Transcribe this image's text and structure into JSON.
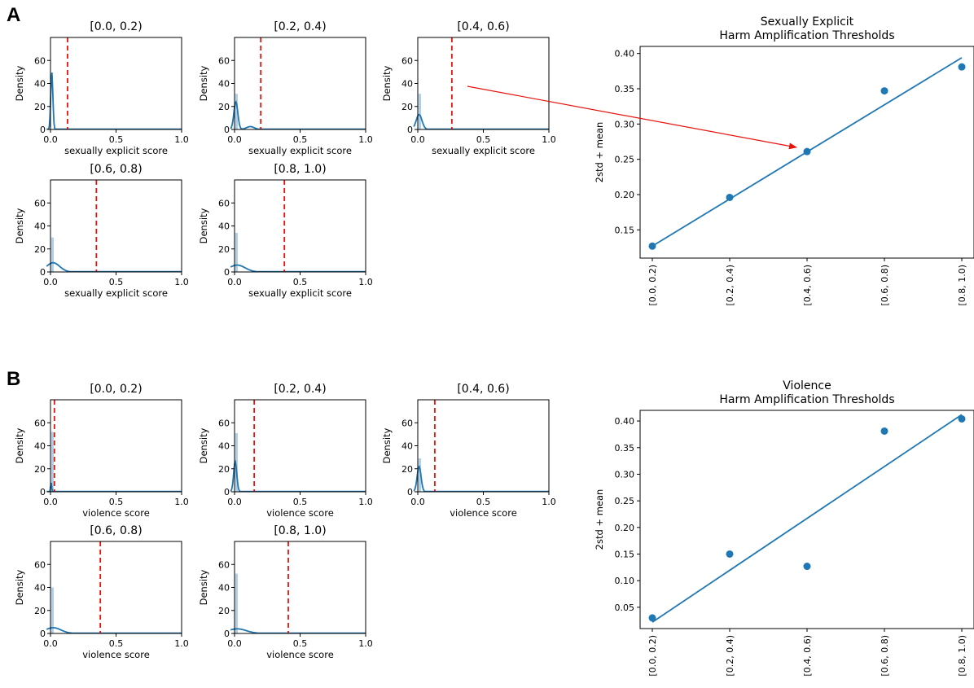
{
  "colors": {
    "series": "#1f77b4",
    "threshold_line": "#e8140c",
    "arrow": "#e8140c",
    "hist_bar": "#1f77b4"
  },
  "panels": [
    {
      "label": "A",
      "xlabel": "sexually explicit score",
      "bins": [
        "[0.0, 0.2)",
        "[0.2, 0.4)",
        "[0.4, 0.6)",
        "[0.6, 0.8)",
        "[0.8, 1.0)"
      ],
      "right_title_line1": "Sexually Explicit",
      "right_title_line2": "Harm Amplification Thresholds"
    },
    {
      "label": "B",
      "xlabel": "violence score",
      "bins": [
        "[0.0, 0.2)",
        "[0.2, 0.4)",
        "[0.4, 0.6)",
        "[0.6, 0.8)",
        "[0.8, 1.0)"
      ],
      "right_title_line1": "Violence",
      "right_title_line2": "Harm Amplification Thresholds"
    }
  ],
  "chart_data": [
    {
      "type": "line",
      "id": "A-dist",
      "ylabel": "Density",
      "xlabel": "sexually explicit score",
      "xlim": [
        0,
        1.0
      ],
      "ylim": [
        0,
        80
      ],
      "xticks": [
        "0.0",
        "0.5",
        "1.0"
      ],
      "yticks": [
        "0",
        "20",
        "40",
        "60"
      ],
      "subplots": [
        {
          "title": "[0.0, 0.2)",
          "threshold": 0.13,
          "hist_peak": 0,
          "kde": {
            "mu": 0.01,
            "sigma": 0.008,
            "peak": 50
          }
        },
        {
          "title": "[0.2, 0.4)",
          "threshold": 0.2,
          "hist_peak": 31,
          "kde": {
            "mu": 0.01,
            "sigma": 0.015,
            "peak": 24,
            "bump": 2.5
          }
        },
        {
          "title": "[0.4, 0.6)",
          "threshold": 0.26,
          "hist_peak": 31,
          "kde": {
            "mu": 0.01,
            "sigma": 0.022,
            "peak": 13
          }
        },
        {
          "title": "[0.6, 0.8)",
          "threshold": 0.35,
          "hist_peak": 30,
          "kde": {
            "mu": 0.02,
            "sigma": 0.05,
            "peak": 8
          }
        },
        {
          "title": "[0.8, 1.0)",
          "threshold": 0.38,
          "hist_peak": 34,
          "kde": {
            "mu": 0.02,
            "sigma": 0.06,
            "peak": 6
          }
        }
      ]
    },
    {
      "type": "scatter",
      "id": "A-thresholds",
      "title": "Sexually Explicit\nHarm Amplification Thresholds",
      "ylabel": "2std + mean",
      "categories": [
        "[0.0, 0.2)",
        "[0.2, 0.4)",
        "[0.4, 0.6)",
        "[0.6, 0.8)",
        "[0.8, 1.0)"
      ],
      "values": [
        0.127,
        0.196,
        0.261,
        0.347,
        0.381
      ],
      "fit_line": [
        0.127,
        0.394
      ],
      "ylim": [
        0.11,
        0.41
      ],
      "yticks": [
        "0.15",
        "0.20",
        "0.25",
        "0.30",
        "0.35",
        "0.40"
      ]
    },
    {
      "type": "line",
      "id": "B-dist",
      "ylabel": "Density",
      "xlabel": "violence score",
      "xlim": [
        0,
        1.0
      ],
      "ylim": [
        0,
        80
      ],
      "xticks": [
        "0.0",
        "0.5",
        "1.0"
      ],
      "yticks": [
        "0",
        "20",
        "40",
        "60"
      ],
      "subplots": [
        {
          "title": "[0.0, 0.2)",
          "threshold": 0.03,
          "hist_peak": 52,
          "kde": {
            "mu": 0.005,
            "sigma": 0.004,
            "peak": 8
          }
        },
        {
          "title": "[0.2, 0.4)",
          "threshold": 0.15,
          "hist_peak": 51,
          "kde": {
            "mu": 0.005,
            "sigma": 0.012,
            "peak": 26
          }
        },
        {
          "title": "[0.4, 0.6)",
          "threshold": 0.13,
          "hist_peak": 29,
          "kde": {
            "mu": 0.01,
            "sigma": 0.015,
            "peak": 22
          }
        },
        {
          "title": "[0.6, 0.8)",
          "threshold": 0.38,
          "hist_peak": 40,
          "kde": {
            "mu": 0.02,
            "sigma": 0.06,
            "peak": 5
          }
        },
        {
          "title": "[0.8, 1.0)",
          "threshold": 0.41,
          "hist_peak": 52,
          "kde": {
            "mu": 0.02,
            "sigma": 0.07,
            "peak": 4
          }
        }
      ]
    },
    {
      "type": "scatter",
      "id": "B-thresholds",
      "title": "Violence\nHarm Amplification Thresholds",
      "ylabel": "2std + mean",
      "categories": [
        "[0.0, 0.2)",
        "[0.2, 0.4)",
        "[0.4, 0.6)",
        "[0.6, 0.8)",
        "[0.8, 1.0)"
      ],
      "values": [
        0.03,
        0.15,
        0.127,
        0.381,
        0.404
      ],
      "fit_line": [
        0.022,
        0.412
      ],
      "ylim": [
        0.01,
        0.42
      ],
      "yticks": [
        "0.05",
        "0.10",
        "0.15",
        "0.20",
        "0.25",
        "0.30",
        "0.35",
        "0.40"
      ]
    }
  ]
}
